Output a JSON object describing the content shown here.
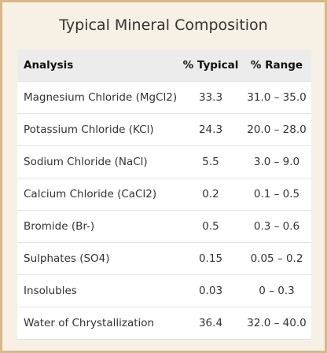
{
  "title": "Typical Mineral Composition",
  "table": {
    "header": [
      "Analysis",
      "% Typical",
      "% Range"
    ],
    "rows": [
      [
        "Magnesium Chloride (MgCl2)",
        "33.3",
        "31.0 – 35.0"
      ],
      [
        "Potassium Chloride (KCl)",
        "24.3",
        "20.0 – 28.0"
      ],
      [
        "Sodium Chloride (NaCl)",
        "5.5",
        "3.0 – 9.0"
      ],
      [
        "Calcium Chloride (CaCl2)",
        "0.2",
        "0.1 – 0.5"
      ],
      [
        "Bromide (Br-)",
        "0.5",
        "0.3 – 0.6"
      ],
      [
        "Sulphates (SO4)",
        "0.15",
        "0.05 – 0.2"
      ],
      [
        "Insolubles",
        "0.03",
        "0 – 0.3"
      ],
      [
        "Water of Chrystallization",
        "36.4",
        "32.0 – 40.0"
      ]
    ]
  }
}
